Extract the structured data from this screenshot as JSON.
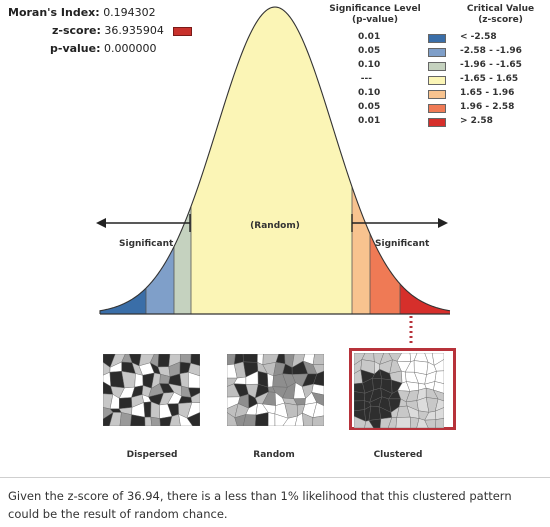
{
  "stats": {
    "morans_label": "Moran's Index:",
    "morans_value": "0.194302",
    "zscore_label": "z-score:",
    "zscore_value": "36.935904",
    "pvalue_label": "p-value:",
    "pvalue_value": "0.000000",
    "zscore_swatch_color": "#c8312c"
  },
  "legend": {
    "sig_header_line1": "Significance Level",
    "sig_header_line2": "(p-value)",
    "cv_header_line1": "Critical Value",
    "cv_header_line2": "(z-score)",
    "rows": [
      {
        "p": "0.01",
        "color": "#3a6ea8",
        "z": "< -2.58"
      },
      {
        "p": "0.05",
        "color": "#7f9fc9",
        "z": "-2.58 - -1.96"
      },
      {
        "p": "0.10",
        "color": "#c5d2bf",
        "z": "-1.96 - -1.65"
      },
      {
        "p": "---",
        "color": "#fbf5b6",
        "z": "-1.65 - 1.65"
      },
      {
        "p": "0.10",
        "color": "#f8c38f",
        "z": "1.65 - 1.96"
      },
      {
        "p": "0.05",
        "color": "#ef7a55",
        "z": "1.96 - 2.58"
      },
      {
        "p": "0.01",
        "color": "#d62f2b",
        "z": "> 2.58"
      }
    ]
  },
  "curve": {
    "random_label": "(Random)",
    "sig_left_label": "Significant",
    "sig_right_label": "Significant"
  },
  "maps": {
    "dispersed_label": "Dispersed",
    "random_label": "Random",
    "clustered_label": "Clustered",
    "highlight_color": "#b7323a"
  },
  "caption": "Given the z-score of 36.94, there is a less than 1% likelihood that this clustered pattern could be the result of random chance."
}
